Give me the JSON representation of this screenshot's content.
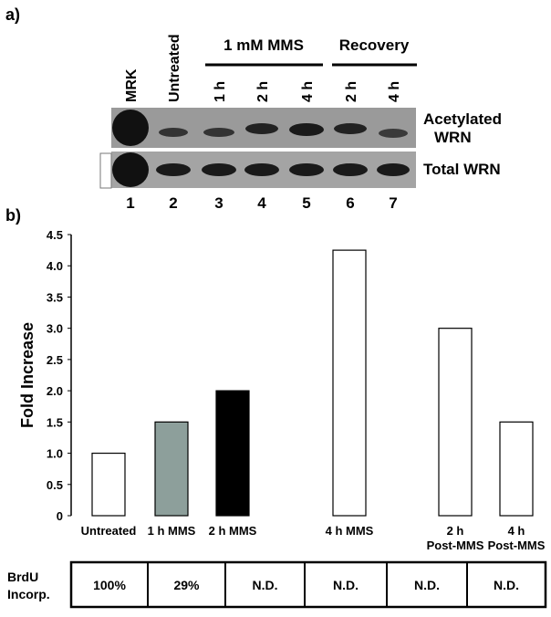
{
  "panel_a": {
    "label": "a)",
    "lanes": [
      "MRK",
      "Untreated",
      "1 h",
      "2 h",
      "4 h",
      "2 h",
      "4 h"
    ],
    "groups": [
      "1 mM MMS",
      "Recovery"
    ],
    "rows": [
      [
        "Acetylated",
        "WRN"
      ],
      [
        "Total WRN"
      ]
    ],
    "lane_numbers": [
      1,
      2,
      3,
      4,
      5,
      6,
      7
    ]
  },
  "chart_data": {
    "type": "bar",
    "panel_label": "b)",
    "ylabel": "Fold Increase",
    "categories": [
      "Untreated",
      "1 h MMS",
      "2 h MMS",
      "4 h MMS",
      [
        "2 h",
        "Post-MMS"
      ],
      [
        "4 h",
        "Post-MMS"
      ]
    ],
    "values": [
      1.0,
      1.5,
      2.0,
      4.25,
      3.0,
      1.5
    ],
    "colors": [
      "#ffffff",
      "#8d9f9b",
      "#000000",
      "#ffffff",
      "#ffffff",
      "#ffffff"
    ],
    "ylim": [
      0,
      4.5
    ],
    "yticks": [
      0,
      0.5,
      {
        "value": 1,
        "label": "1.0"
      },
      1.5,
      {
        "value": 2,
        "label": "2.0"
      },
      2.5,
      {
        "value": 3,
        "label": "3.0"
      },
      3.5,
      {
        "value": 4,
        "label": "4.0"
      },
      4.5
    ]
  },
  "table": {
    "row_header": [
      "BrdU",
      "Incorp."
    ],
    "cells": [
      "100%",
      "29%",
      "N.D.",
      "N.D.",
      "N.D.",
      "N.D."
    ]
  }
}
